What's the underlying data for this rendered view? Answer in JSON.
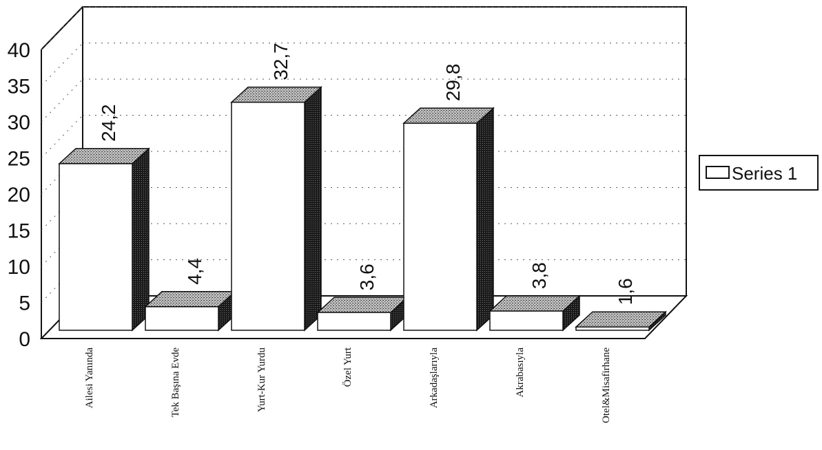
{
  "chart_data": {
    "type": "bar",
    "categories": [
      "Ailesi Yanında",
      "Tek Başına Evde",
      "Yurt-Kur Yurdu",
      "Özel Yurt",
      "Arkadaşlarıyla",
      "Akrabasıyla",
      "Otel&Misafirhane"
    ],
    "series": [
      {
        "name": "Series 1",
        "values": [
          24.2,
          4.4,
          32.7,
          3.6,
          29.8,
          3.8,
          1.6
        ],
        "labels": [
          "24,2",
          "4,4",
          "32,7",
          "3,6",
          "29,8",
          "3,8",
          "1,6"
        ]
      }
    ],
    "yticks": [
      "0",
      "5",
      "10",
      "15",
      "20",
      "25",
      "30",
      "35",
      "40"
    ],
    "ylim": [
      0,
      40
    ],
    "legend": "right",
    "grid": true,
    "style": "3d"
  }
}
